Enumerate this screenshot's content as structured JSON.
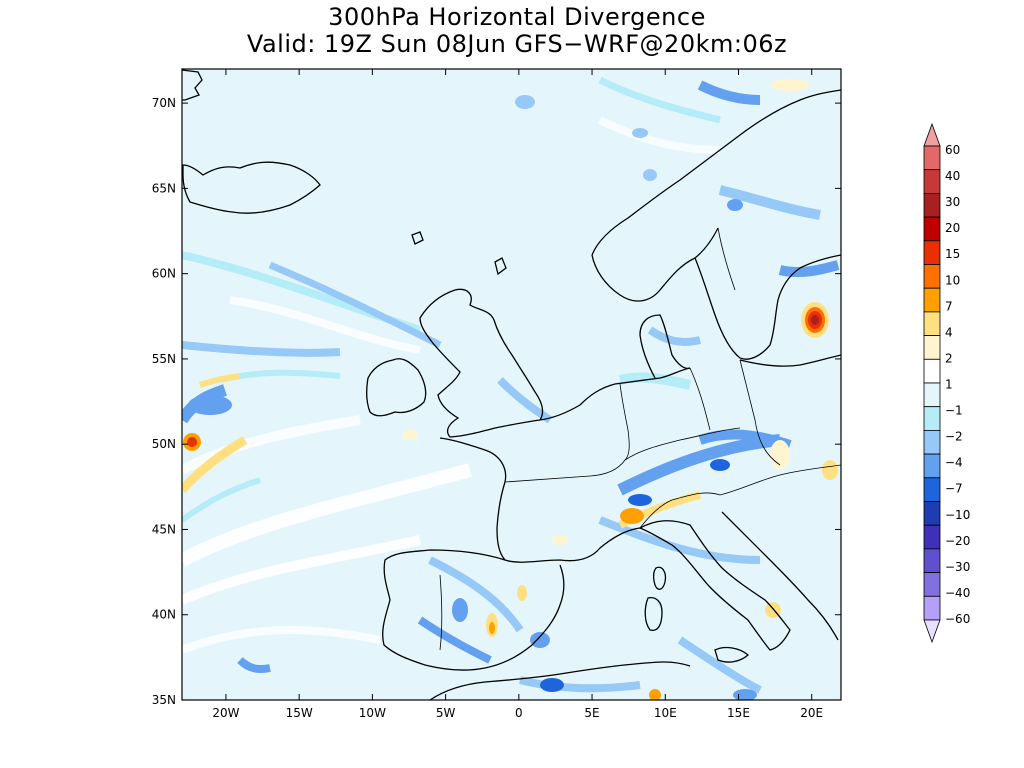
{
  "header": {
    "title_line1": "300hPa Horizontal Divergence",
    "title_line2": "Valid: 19Z Sun 08Jun GFS−WRF@20km:06z"
  },
  "map": {
    "projection": "lat-lon",
    "lon_range": [
      -23,
      22
    ],
    "lat_range": [
      35,
      72
    ],
    "x_ticks": [
      {
        "value": -20,
        "label": "20W"
      },
      {
        "value": -15,
        "label": "15W"
      },
      {
        "value": -10,
        "label": "10W"
      },
      {
        "value": -5,
        "label": "5W"
      },
      {
        "value": 0,
        "label": "0"
      },
      {
        "value": 5,
        "label": "5E"
      },
      {
        "value": 10,
        "label": "10E"
      },
      {
        "value": 15,
        "label": "15E"
      },
      {
        "value": 20,
        "label": "20E"
      }
    ],
    "y_ticks": [
      {
        "value": 35,
        "label": "35N"
      },
      {
        "value": 40,
        "label": "40N"
      },
      {
        "value": 45,
        "label": "45N"
      },
      {
        "value": 50,
        "label": "50N"
      },
      {
        "value": 55,
        "label": "55N"
      },
      {
        "value": 60,
        "label": "60N"
      },
      {
        "value": 65,
        "label": "65N"
      },
      {
        "value": 70,
        "label": "70N"
      }
    ],
    "background_color": "#e4f6fc",
    "coastline_color": "#000000"
  },
  "colorbar": {
    "label_levels": [
      "60",
      "40",
      "30",
      "20",
      "15",
      "10",
      "7",
      "4",
      "2",
      "1",
      "−1",
      "−2",
      "−4",
      "−7",
      "−10",
      "−20",
      "−30",
      "−40",
      "−60"
    ],
    "colors_top_to_bottom": [
      "#f0a0a0",
      "#e46868",
      "#c83838",
      "#a82020",
      "#c00000",
      "#e83000",
      "#ff7000",
      "#ffa000",
      "#ffe080",
      "#fff4d0",
      "#ffffff",
      "#e4f6fc",
      "#b4ecf8",
      "#96c8f8",
      "#64a0f0",
      "#1e64dc",
      "#1e3cb4",
      "#4030b8",
      "#6050d0",
      "#8070e0",
      "#b4a0f8",
      "#e8e0ff"
    ]
  }
}
